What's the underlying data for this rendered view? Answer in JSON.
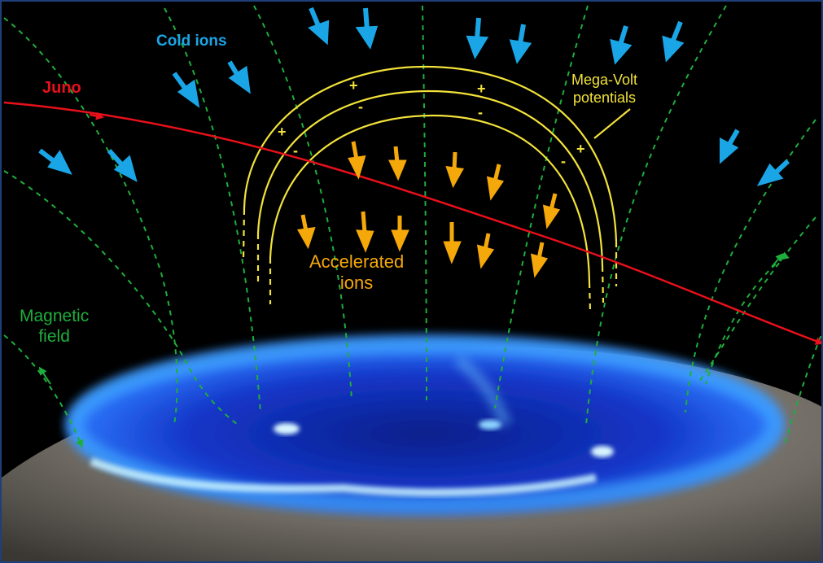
{
  "labels": {
    "juno": "Juno",
    "cold_ions": "Cold ions",
    "mega_volt_line1": "Mega-Volt",
    "mega_volt_line2": "potentials",
    "accelerated_line1": "Accelerated",
    "accelerated_line2": "ions",
    "magnetic_line1": "Magnetic",
    "magnetic_line2": "field"
  },
  "symbols": {
    "plus": "+",
    "minus": "-"
  },
  "colors": {
    "background": "#000000",
    "frame": "#1f3f7a",
    "juno": "#e8101a",
    "cold_ions": "#1aa6e6",
    "potentials": "#f2e23a",
    "accelerated_ions": "#f5a80a",
    "magnetic_field": "#1fae3c",
    "aurora": "#2a7bff",
    "planet": "#8a8580"
  }
}
